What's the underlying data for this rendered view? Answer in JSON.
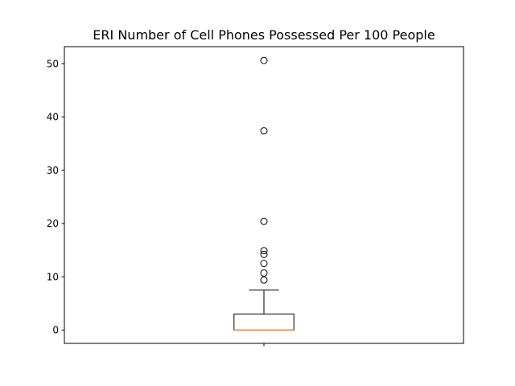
{
  "chart_data": {
    "type": "box",
    "title": "ERI Number of Cell Phones Possessed Per 100 People",
    "xlabel": "",
    "ylabel": "",
    "ylim": [
      -2.5,
      53.2
    ],
    "yticks": [
      0,
      10,
      20,
      30,
      40,
      50
    ],
    "xticks": [
      1
    ],
    "xlim": [
      0.5,
      1.5
    ],
    "grid": false,
    "legend": "none",
    "colors": {
      "box": "#000000",
      "median": "#ff7f0e",
      "flier": "#000000"
    },
    "series": [
      {
        "position": 1,
        "whisker_low": 0,
        "q1": 0,
        "median": 0,
        "q3": 3.0,
        "whisker_high": 7.5,
        "fliers": [
          9.4,
          10.7,
          12.5,
          14.2,
          14.9,
          20.4,
          37.4,
          50.6
        ]
      }
    ]
  }
}
